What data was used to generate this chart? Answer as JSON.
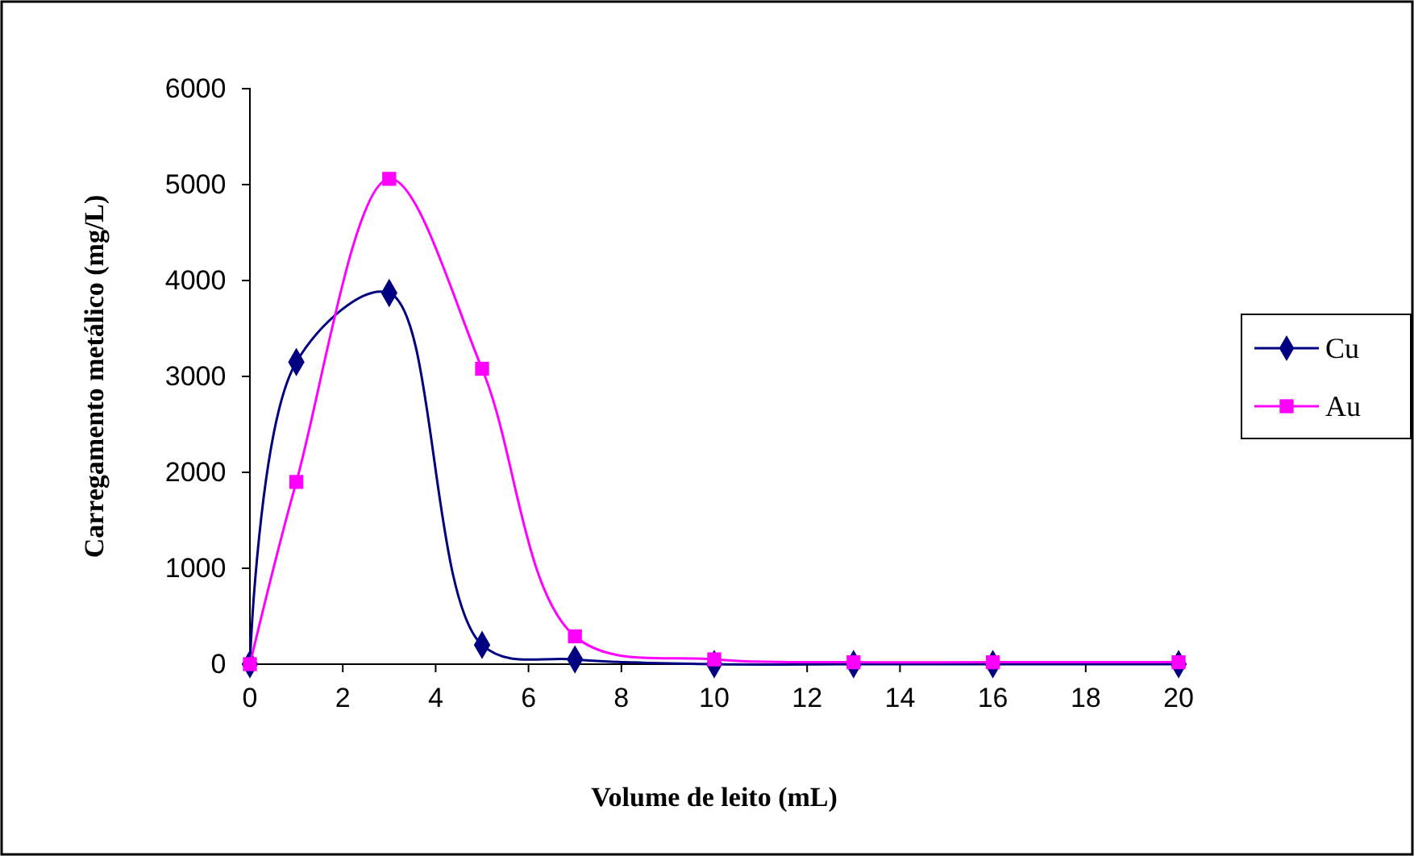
{
  "chart_data": {
    "type": "line",
    "xlabel": "Volume de leito (mL)",
    "ylabel": "Carregamento metálico (mg/L)",
    "x": [
      0,
      1,
      3,
      5,
      7,
      10,
      13,
      16,
      20
    ],
    "series": [
      {
        "name": "Cu",
        "color": "#000080",
        "marker": "diamond",
        "values": [
          0,
          3150,
          3870,
          200,
          50,
          0,
          0,
          0,
          0
        ]
      },
      {
        "name": "Au",
        "color": "#ff00ff",
        "marker": "square",
        "values": [
          0,
          1900,
          5060,
          3080,
          290,
          50,
          20,
          20,
          20
        ]
      }
    ],
    "xlim": [
      0,
      20
    ],
    "xticks": [
      0,
      2,
      4,
      6,
      8,
      10,
      12,
      14,
      16,
      18,
      20
    ],
    "ylim": [
      0,
      6000
    ],
    "yticks": [
      0,
      1000,
      2000,
      3000,
      4000,
      5000,
      6000
    ],
    "grid": false,
    "legend": "right",
    "line_style": "solid"
  }
}
